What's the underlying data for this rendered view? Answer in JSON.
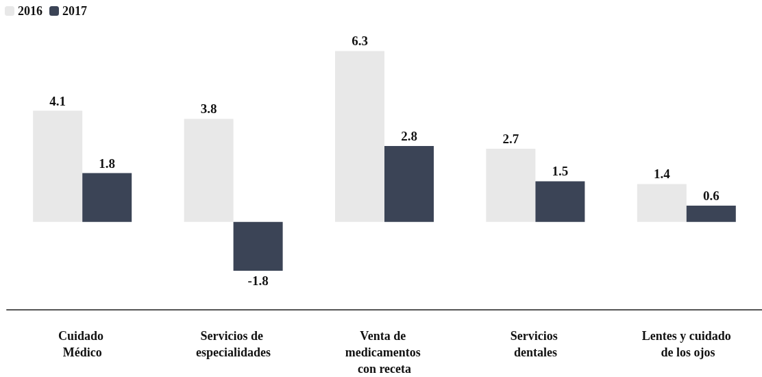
{
  "chart_data": {
    "type": "bar",
    "categories": [
      "Cuidado Médico",
      "Servicios de especialidades",
      "Venta de medicamentos con receta",
      "Servicios dentales",
      "Lentes y cuidado de los ojos"
    ],
    "series": [
      {
        "name": "2016",
        "color": "#e8e8e8",
        "values": [
          4.1,
          3.8,
          6.3,
          2.7,
          1.4
        ]
      },
      {
        "name": "2017",
        "color": "#3b4456",
        "values": [
          1.8,
          -1.8,
          2.8,
          1.5,
          0.6
        ]
      }
    ],
    "data_labels": true,
    "legend": "top left"
  }
}
